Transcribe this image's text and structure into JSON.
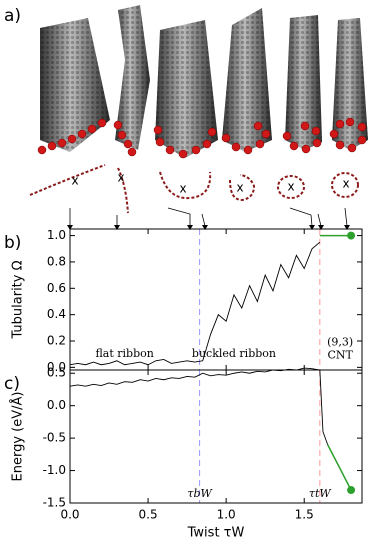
{
  "panel_a": {
    "label": "a)",
    "markers": [
      "x",
      "x",
      "x",
      "x",
      "x",
      "x"
    ]
  },
  "chart_data": [
    {
      "type": "line",
      "panel_label": "b)",
      "ylabel": "Tubularity Ω",
      "xlim": [
        0,
        1.87
      ],
      "ylim": [
        -0.02,
        1.05
      ],
      "xticks": [
        0,
        0.5,
        1,
        1.5
      ],
      "yticks": [
        {
          "value": 0,
          "label": "0.0"
        },
        {
          "value": 0.2,
          "label": "0.2"
        },
        {
          "value": 0.4,
          "label": "0.4"
        },
        {
          "value": 0.6,
          "label": "0.6"
        },
        {
          "value": 0.8,
          "label": "0.8"
        },
        {
          "value": 1,
          "label": "1.0"
        }
      ],
      "series": [
        {
          "color": "#000000",
          "x": [
            0,
            0.05,
            0.1,
            0.15,
            0.2,
            0.25,
            0.3,
            0.35,
            0.4,
            0.45,
            0.5,
            0.55,
            0.6,
            0.65,
            0.7,
            0.75,
            0.8,
            0.85,
            0.9,
            0.95,
            1.0,
            1.05,
            1.1,
            1.15,
            1.2,
            1.25,
            1.3,
            1.35,
            1.4,
            1.45,
            1.5,
            1.55,
            1.6
          ],
          "values": [
            0.02,
            0.03,
            0.02,
            0.04,
            0.02,
            0.03,
            0.05,
            0.02,
            0.03,
            0.04,
            0.02,
            0.05,
            0.06,
            0.03,
            0.04,
            0.05,
            0.04,
            0.05,
            0.25,
            0.4,
            0.35,
            0.55,
            0.45,
            0.62,
            0.5,
            0.7,
            0.58,
            0.78,
            0.68,
            0.85,
            0.75,
            0.9,
            0.95
          ]
        },
        {
          "color": "#2ca02c",
          "x": [
            1.6,
            1.8
          ],
          "values": [
            1.0,
            1.0
          ],
          "end_marker": true
        }
      ],
      "vlines": [
        {
          "x": 0.83,
          "color": "#9999ff"
        },
        {
          "x": 1.6,
          "color": "#ff9999"
        }
      ],
      "annotations": [
        {
          "text": "flat ribbon",
          "color": "#000000"
        },
        {
          "text": "buckled ribbon",
          "color": "#0000cc"
        },
        {
          "text": "(9,3)",
          "color": "#cc0000"
        },
        {
          "text": "CNT",
          "color": "#cc0000"
        }
      ]
    },
    {
      "type": "line",
      "panel_label": "c)",
      "ylabel": "Energy (eV/Å)",
      "xlabel": "Twist τW",
      "xlim": [
        0,
        1.87
      ],
      "ylim": [
        -1.5,
        0.55
      ],
      "xticks": [
        {
          "value": 0,
          "label": "0.0"
        },
        {
          "value": 0.5,
          "label": "0.5"
        },
        {
          "value": 1,
          "label": "1.0"
        },
        {
          "value": 1.5,
          "label": "1.5"
        }
      ],
      "yticks": [
        {
          "value": 0.5,
          "label": "0.5"
        },
        {
          "value": 0,
          "label": "0.0"
        },
        {
          "value": -0.5,
          "label": "-0.5"
        },
        {
          "value": -1,
          "label": "-1.0"
        },
        {
          "value": -1.5,
          "label": "-1.5"
        }
      ],
      "series": [
        {
          "color": "#000000",
          "x": [
            0,
            0.05,
            0.1,
            0.15,
            0.2,
            0.25,
            0.3,
            0.35,
            0.4,
            0.45,
            0.5,
            0.55,
            0.6,
            0.65,
            0.7,
            0.75,
            0.8,
            0.85,
            0.9,
            0.95,
            1.0,
            1.05,
            1.1,
            1.15,
            1.2,
            1.25,
            1.3,
            1.35,
            1.4,
            1.45,
            1.5,
            1.55,
            1.6,
            1.62,
            1.65
          ],
          "values": [
            0.3,
            0.32,
            0.3,
            0.33,
            0.31,
            0.35,
            0.33,
            0.37,
            0.36,
            0.4,
            0.38,
            0.42,
            0.4,
            0.43,
            0.42,
            0.45,
            0.44,
            0.5,
            0.46,
            0.48,
            0.47,
            0.5,
            0.52,
            0.5,
            0.53,
            0.52,
            0.55,
            0.54,
            0.56,
            0.55,
            0.58,
            0.57,
            0.55,
            -0.4,
            -0.6
          ]
        },
        {
          "color": "#2ca02c",
          "x": [
            1.65,
            1.8
          ],
          "values": [
            -0.6,
            -1.3
          ],
          "end_marker": true
        }
      ],
      "vlines": [
        {
          "x": 0.83,
          "color": "#9999ff",
          "label": "τbW",
          "label_color": "#0000cc"
        },
        {
          "x": 1.6,
          "color": "#ff9999",
          "label": "τtW",
          "label_color": "#cc0000"
        }
      ]
    }
  ]
}
